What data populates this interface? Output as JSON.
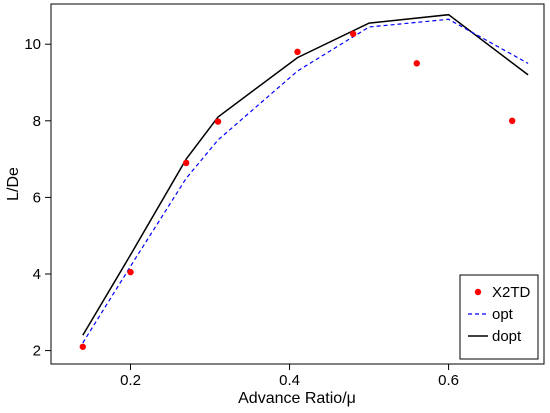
{
  "chart_data": {
    "type": "line",
    "xlabel": "Advance Ratio/μ",
    "ylabel": "L/De",
    "xlim": [
      0.1,
      0.72
    ],
    "ylim": [
      1.65,
      11.05
    ],
    "xticks": [
      0.2,
      0.4,
      0.6
    ],
    "xtick_labels": [
      "0.2",
      "0.4",
      "0.6"
    ],
    "yticks": [
      2,
      4,
      6,
      8,
      10
    ],
    "ytick_labels": [
      "2",
      "4",
      "6",
      "8",
      "10"
    ],
    "grid": false,
    "legend_position": "bottom-right",
    "series": [
      {
        "name": "X2TD",
        "style": "points",
        "color": "#ff0000",
        "x": [
          0.14,
          0.2,
          0.27,
          0.31,
          0.41,
          0.48,
          0.56,
          0.68
        ],
        "y": [
          2.1,
          4.05,
          6.9,
          7.98,
          9.8,
          10.27,
          9.5,
          8.0
        ]
      },
      {
        "name": "opt",
        "style": "dashed",
        "color": "#0000ff",
        "x": [
          0.14,
          0.2,
          0.27,
          0.31,
          0.41,
          0.5,
          0.6,
          0.7
        ],
        "y": [
          2.2,
          4.2,
          6.5,
          7.5,
          9.3,
          10.45,
          10.65,
          9.5
        ]
      },
      {
        "name": "dopt",
        "style": "solid",
        "color": "#000000",
        "x": [
          0.14,
          0.2,
          0.27,
          0.31,
          0.41,
          0.5,
          0.6,
          0.7
        ],
        "y": [
          2.4,
          4.5,
          7.0,
          8.1,
          9.65,
          10.55,
          10.77,
          9.2
        ]
      }
    ]
  }
}
